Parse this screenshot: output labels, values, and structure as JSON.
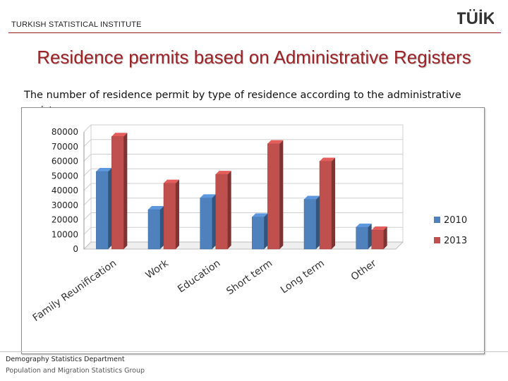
{
  "header": {
    "institute": "TURKISH STATISTICAL INSTITUTE",
    "logo_text": "TÜİK",
    "rule_color": "#9a1e22"
  },
  "main": {
    "title": "Residence permits based on Administrative Registers",
    "subtitle": "The number of residence permit by type of residence according to the administrative registers"
  },
  "chart_data": {
    "type": "bar",
    "style": "3d-clustered",
    "categories": [
      "Family Reunification",
      "Work",
      "Education",
      "Short term",
      "Long term",
      "Other"
    ],
    "series": [
      {
        "name": "2010",
        "color": "#4f81bd",
        "values": [
          53000,
          27000,
          35000,
          22000,
          34000,
          15000
        ]
      },
      {
        "name": "2013",
        "color": "#c0504d",
        "values": [
          77000,
          45000,
          51000,
          72000,
          60000,
          13000
        ]
      }
    ],
    "ylim": [
      0,
      80000
    ],
    "yticks": [
      0,
      10000,
      20000,
      30000,
      40000,
      50000,
      60000,
      70000,
      80000
    ],
    "title": "",
    "xlabel": "",
    "ylabel": "",
    "grid": true,
    "legend_position": "right"
  },
  "footer": {
    "department": "Demography Statistics Department",
    "group": "Population and Migration Statistics Group"
  }
}
